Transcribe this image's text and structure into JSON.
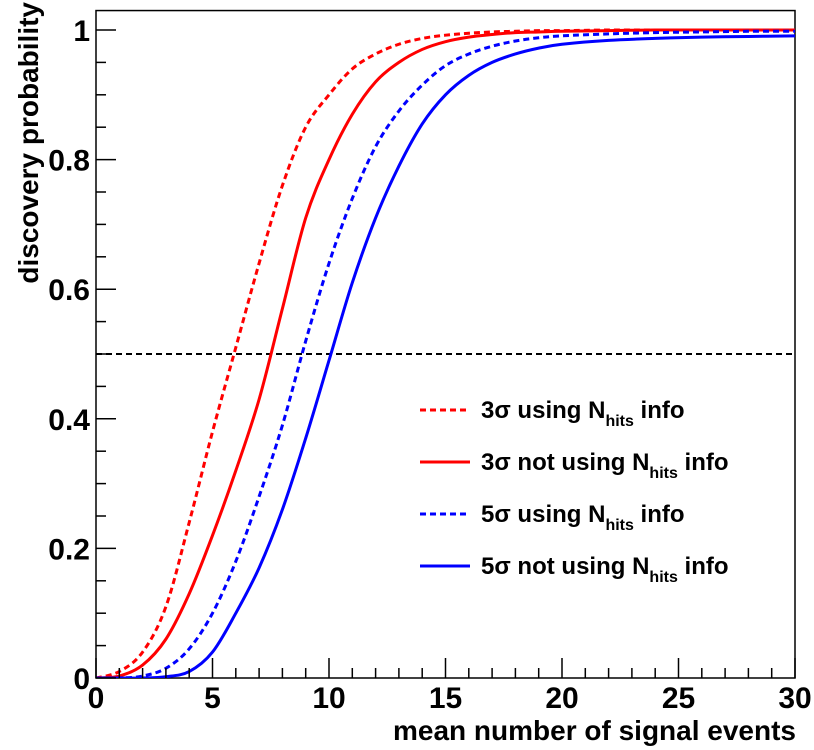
{
  "chart_data": {
    "type": "line",
    "title": "",
    "xlabel": "mean number of signal events",
    "ylabel": "discovery probability",
    "xlim": [
      0,
      30
    ],
    "ylim": [
      0,
      1.03
    ],
    "x_ticks": [
      {
        "value": 0,
        "label": "0"
      },
      {
        "value": 5,
        "label": "5"
      },
      {
        "value": 10,
        "label": "10"
      },
      {
        "value": 15,
        "label": "15"
      },
      {
        "value": 20,
        "label": "20"
      },
      {
        "value": 25,
        "label": "25"
      },
      {
        "value": 30,
        "label": "30"
      }
    ],
    "y_ticks": [
      {
        "value": 0,
        "label": "0"
      },
      {
        "value": 0.2,
        "label": "0.2"
      },
      {
        "value": 0.4,
        "label": "0.4"
      },
      {
        "value": 0.6,
        "label": "0.6"
      },
      {
        "value": 0.8,
        "label": "0.8"
      },
      {
        "value": 1,
        "label": "1"
      }
    ],
    "grid": false,
    "legend_position": "center-right",
    "reference_line": {
      "y": 0.5,
      "style": "dashed",
      "color": "#000000"
    },
    "x": [
      0,
      1,
      2,
      3,
      4,
      5,
      6,
      7,
      8,
      9,
      10,
      11,
      12,
      13,
      14,
      15,
      16,
      17,
      18,
      19,
      20,
      22,
      24,
      26,
      28,
      30
    ],
    "series": [
      {
        "name_prefix": "3σ using N",
        "name_sub": "hits",
        "name_suffix": " info",
        "color": "#ff0000",
        "dash": "dashed",
        "values": [
          0.0,
          0.01,
          0.04,
          0.11,
          0.24,
          0.38,
          0.51,
          0.64,
          0.76,
          0.85,
          0.9,
          0.94,
          0.963,
          0.978,
          0.987,
          0.992,
          0.995,
          0.997,
          0.998,
          0.999,
          0.999,
          1.0,
          1.0,
          1.0,
          1.0,
          1.0
        ]
      },
      {
        "name_prefix": "3σ not using N",
        "name_sub": "hits",
        "name_suffix": " info",
        "color": "#ff0000",
        "dash": "solid",
        "values": [
          0.0,
          0.003,
          0.02,
          0.06,
          0.13,
          0.22,
          0.32,
          0.43,
          0.57,
          0.71,
          0.8,
          0.87,
          0.92,
          0.95,
          0.97,
          0.982,
          0.989,
          0.993,
          0.996,
          0.997,
          0.998,
          0.999,
          1.0,
          1.0,
          1.0,
          1.0
        ]
      },
      {
        "name_prefix": "5σ using N",
        "name_sub": "hits",
        "name_suffix": " info",
        "color": "#0000ff",
        "dash": "dashed",
        "values": [
          0.0,
          0.0,
          0.003,
          0.015,
          0.045,
          0.1,
          0.18,
          0.28,
          0.39,
          0.52,
          0.64,
          0.74,
          0.82,
          0.875,
          0.915,
          0.945,
          0.963,
          0.975,
          0.983,
          0.988,
          0.991,
          0.994,
          0.996,
          0.997,
          0.998,
          0.998
        ]
      },
      {
        "name_prefix": "5σ not using N",
        "name_sub": "hits",
        "name_suffix": " info",
        "color": "#0000ff",
        "dash": "solid",
        "values": [
          0.0,
          0.0,
          0.0,
          0.002,
          0.01,
          0.04,
          0.1,
          0.17,
          0.26,
          0.37,
          0.49,
          0.61,
          0.71,
          0.79,
          0.855,
          0.9,
          0.93,
          0.95,
          0.963,
          0.972,
          0.978,
          0.984,
          0.987,
          0.989,
          0.99,
          0.991
        ]
      }
    ]
  }
}
